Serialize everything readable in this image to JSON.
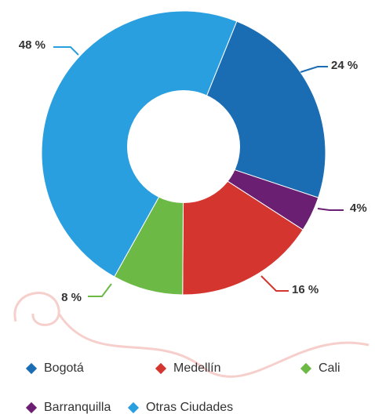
{
  "chart_data": {
    "type": "donut",
    "categories": [
      "Bogotá",
      "Barranquilla",
      "Medellín",
      "Cali",
      "Otras Ciudades"
    ],
    "values": [
      24,
      4,
      16,
      8,
      48
    ],
    "value_labels": [
      "24 %",
      "4%",
      "16 %",
      "8 %",
      "48 %"
    ],
    "colors": [
      "#1b6db3",
      "#6b1f72",
      "#d5352f",
      "#6cb946",
      "#2a9fe0"
    ]
  }
}
